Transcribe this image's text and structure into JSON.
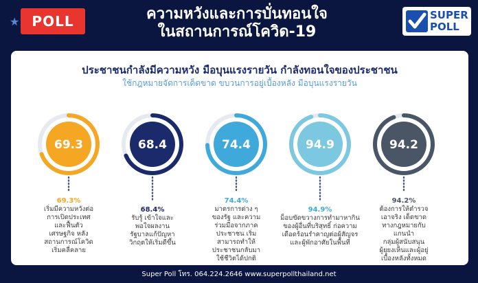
{
  "header": {
    "poll_label": "POLL",
    "title_line1": "ความหวังและการบั่นทอนใจ",
    "title_line2": "ในสถานการณ์โควิด-19"
  },
  "logo": {
    "line1": "SUPER",
    "line2": "POLL"
  },
  "card": {
    "headline": "ประชาชนกำลังมีความหวัง มือบุนแรงรายวัน กำลังทอนใจของประชาชน",
    "subline": "ใช้กฎหมายจัดการเด็ดขาด ขบวนการอยู่เบื้องหลัง มือบุนแรงรายวัน"
  },
  "chart_data": {
    "type": "donut",
    "values": [
      69.3,
      68.4,
      74.4,
      94.9,
      94.2
    ],
    "value_labels": [
      "69.3",
      "68.4",
      "74.4",
      "94.9",
      "94.2"
    ],
    "percent_labels": [
      "69.3%",
      "68.4%",
      "74.4%",
      "94.9%",
      "94.2%"
    ],
    "colors": [
      "#f5a623",
      "#1b2a6b",
      "#3fa9dc",
      "#7cc8e0",
      "#4a5566"
    ],
    "descriptions": [
      [
        "เริ่มมีความหวังต่อ",
        "การเปิดประเทศ",
        "และฟื้นตัว",
        "เศรษฐกิจ หลัง",
        "สถานการณ์โควิด",
        "เริ่มคลี่คลาย"
      ],
      [
        "รับรู้ เข้าใจและ",
        "พอใจผลงาน",
        "รัฐบาลแก้ปัญหา",
        "วิกฤตให้เริ่มดีขึ้น"
      ],
      [
        "มาตรการต่าง ๆ",
        "ของรัฐ และความ",
        "ร่วมมือจากภาค",
        "ประชาชน เริ่ม",
        "สามารถทำให้",
        "ประชาชนกลับมา",
        "ใช้ชีวิตได้ปกติ"
      ],
      [
        "ม็อบขัดขวางการทำมาหากิน",
        "ของผู้อื่นที่บริสุทธิ์ ก่อความ",
        "เดือดร้อนรำคาญต่อผู้สัญจร",
        "และผู้พักอาศัยในพื้นที่"
      ],
      [
        "ต้องการให้ตำรวจ",
        "เอาจริง เด็ดขาด",
        "ทางกฎหมายกับ",
        "แกนนำ",
        "กลุ่มผู้สนับสนุน",
        "ผู้ยุยงเห็นและผู้อยู่",
        "เบื้องหลังทั้งหมด"
      ]
    ]
  },
  "footer": {
    "text": "Super Poll โทร. 064.224.2646  www.superpollthailand.net"
  }
}
